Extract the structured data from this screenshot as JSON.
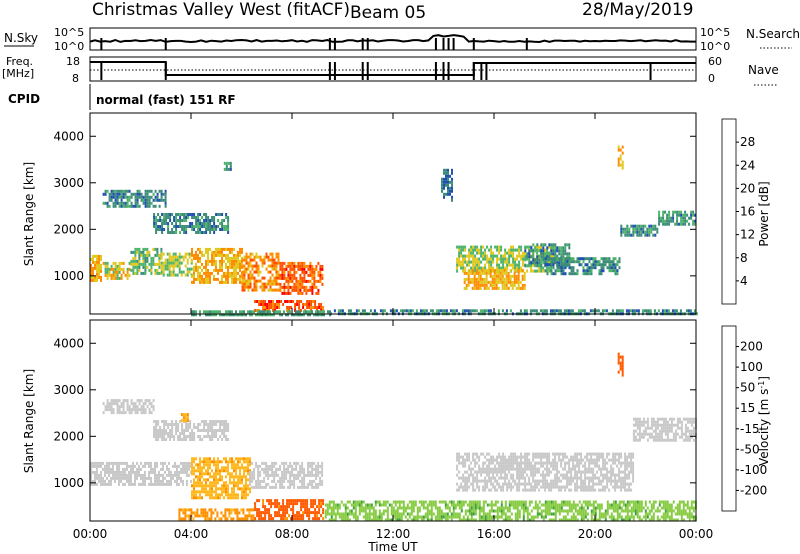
{
  "header": {
    "site": "Christmas Valley West (fitACF)",
    "beam": "Beam 05",
    "date": "28/May/2019"
  },
  "summary": {
    "nsky_label": "N.Sky",
    "nsky_ticks": [
      "10^5",
      "10^0"
    ],
    "nsearch_label": "N.Search",
    "nsearch_ticks": [
      "10^5",
      "10^0"
    ],
    "freq_label": "Freq.",
    "freq_unit": "[MHz]",
    "freq_ticks": [
      "18",
      "8"
    ],
    "nave_label": "Nave",
    "nave_ticks": [
      "60",
      "0"
    ],
    "cpid_label": "CPID",
    "cpid_value": "normal (fast) 151 RF"
  },
  "colors": {
    "power": [
      "#0000ff",
      "#2050b0",
      "#3c8c78",
      "#4db36a",
      "#e0c81e",
      "#ff8c00",
      "#ff5000",
      "#ff0000"
    ],
    "velocity": [
      "#ff0000",
      "#ff5a00",
      "#ff9000",
      "#ffb820",
      "#c8c8c8",
      "#88cc44",
      "#40a040",
      "#2a5acc",
      "#0000ff"
    ]
  },
  "chart_data": [
    {
      "type": "heatmap",
      "title": "",
      "ylabel": "Slant Range [km]",
      "xlabel": "Time UT",
      "ylim": [
        180,
        4500
      ],
      "xlim": [
        0,
        24
      ],
      "yticks": [
        "1000",
        "2000",
        "3000",
        "4000"
      ],
      "xticks": [
        "00:00",
        "04:00",
        "08:00",
        "12:00",
        "16:00",
        "20:00",
        "00:00"
      ],
      "colorbar": {
        "label": "Power [dB]",
        "ticks": [
          "4",
          "8",
          "12",
          "16",
          "20",
          "24",
          "28"
        ],
        "range": [
          0,
          32
        ]
      },
      "regions": [
        {
          "t0": 0.0,
          "t1": 0.4,
          "r0": 900,
          "r1": 1450,
          "v": 20
        },
        {
          "t0": 0.5,
          "t1": 1.6,
          "r0": 950,
          "r1": 1300,
          "v": 18
        },
        {
          "t0": 1.6,
          "t1": 2.8,
          "r0": 1050,
          "r1": 1600,
          "v": 14
        },
        {
          "t0": 2.8,
          "t1": 4.0,
          "r0": 1000,
          "r1": 1500,
          "v": 16
        },
        {
          "t0": 4.0,
          "t1": 6.0,
          "r0": 850,
          "r1": 1600,
          "v": 20
        },
        {
          "t0": 6.0,
          "t1": 7.5,
          "r0": 700,
          "r1": 1500,
          "v": 22
        },
        {
          "t0": 7.5,
          "t1": 9.2,
          "r0": 650,
          "r1": 1300,
          "v": 25
        },
        {
          "t0": 6.5,
          "t1": 9.2,
          "r0": 230,
          "r1": 480,
          "v": 26
        },
        {
          "t0": 4.0,
          "t1": 9.5,
          "r0": 180,
          "r1": 260,
          "v": 12
        },
        {
          "t0": 0.5,
          "t1": 3.0,
          "r0": 2500,
          "r1": 2850,
          "v": 10
        },
        {
          "t0": 2.5,
          "t1": 5.5,
          "r0": 1900,
          "r1": 2350,
          "v": 10
        },
        {
          "t0": 5.3,
          "t1": 5.6,
          "r0": 3300,
          "r1": 3450,
          "v": 10
        },
        {
          "t0": 14.5,
          "t1": 18.5,
          "r0": 1100,
          "r1": 1650,
          "v": 16
        },
        {
          "t0": 14.8,
          "t1": 17.2,
          "r0": 700,
          "r1": 1150,
          "v": 20
        },
        {
          "t0": 17.2,
          "t1": 19.0,
          "r0": 1200,
          "r1": 1700,
          "v": 10
        },
        {
          "t0": 18.0,
          "t1": 21.0,
          "r0": 1050,
          "r1": 1400,
          "v": 10
        },
        {
          "t0": 21.0,
          "t1": 22.5,
          "r0": 1900,
          "r1": 2100,
          "v": 10
        },
        {
          "t0": 22.5,
          "t1": 24.0,
          "r0": 2100,
          "r1": 2400,
          "v": 11
        },
        {
          "t0": 13.9,
          "t1": 14.3,
          "r0": 2600,
          "r1": 3300,
          "v": 8
        },
        {
          "t0": 9.5,
          "t1": 24.0,
          "r0": 180,
          "r1": 280,
          "v": 10
        },
        {
          "t0": 20.9,
          "t1": 21.1,
          "r0": 3300,
          "r1": 3800,
          "v": 20
        }
      ]
    },
    {
      "type": "heatmap",
      "title": "",
      "ylabel": "Slant Range [km]",
      "xlabel": "Time UT",
      "ylim": [
        180,
        4500
      ],
      "xlim": [
        0,
        24
      ],
      "yticks": [
        "1000",
        "2000",
        "3000",
        "4000"
      ],
      "xticks": [
        "00:00",
        "04:00",
        "08:00",
        "12:00",
        "16:00",
        "20:00",
        "00:00"
      ],
      "colorbar": {
        "label": "Velocity [m s",
        "label_sup": "-1",
        "label_end": "]",
        "ticks": [
          "-200",
          "-100",
          "-50",
          "-15",
          "15",
          "50",
          "100",
          "200"
        ],
        "range": [
          -250,
          250
        ]
      },
      "regions": [
        {
          "t0": 0.0,
          "t1": 4.0,
          "r0": 950,
          "r1": 1450,
          "v": 0
        },
        {
          "t0": 4.0,
          "t1": 6.3,
          "r0": 700,
          "r1": 1550,
          "v": -40
        },
        {
          "t0": 6.3,
          "t1": 9.2,
          "r0": 900,
          "r1": 1450,
          "v": 0
        },
        {
          "t0": 6.5,
          "t1": 9.2,
          "r0": 230,
          "r1": 650,
          "v": -110
        },
        {
          "t0": 3.5,
          "t1": 6.5,
          "r0": 230,
          "r1": 450,
          "v": -60
        },
        {
          "t0": 9.3,
          "t1": 24.0,
          "r0": 180,
          "r1": 620,
          "v": 40
        },
        {
          "t0": 14.5,
          "t1": 21.5,
          "r0": 850,
          "r1": 1650,
          "v": 0
        },
        {
          "t0": 21.5,
          "t1": 24.0,
          "r0": 1900,
          "r1": 2400,
          "v": 0
        },
        {
          "t0": 2.5,
          "t1": 5.5,
          "r0": 1900,
          "r1": 2350,
          "v": 0
        },
        {
          "t0": 0.5,
          "t1": 2.5,
          "r0": 2500,
          "r1": 2800,
          "v": 0
        },
        {
          "t0": 3.6,
          "t1": 3.9,
          "r0": 2350,
          "r1": 2500,
          "v": -50
        },
        {
          "t0": 20.9,
          "t1": 21.1,
          "r0": 3300,
          "r1": 3800,
          "v": -150
        }
      ]
    }
  ]
}
